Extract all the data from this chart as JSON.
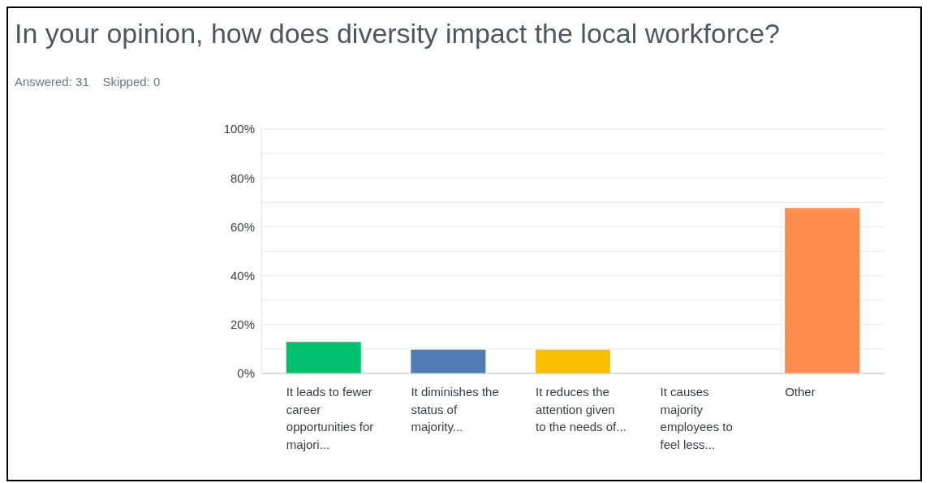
{
  "chart_data": {
    "type": "bar",
    "title": "In your opinion, how does diversity impact the local workforce?",
    "subtitle": "Answered: 31    Skipped: 0",
    "categories": [
      "It leads to fewer career opportunities for majori...",
      "It diminishes the status of majority...",
      "It reduces the attention given to the needs of...",
      "It causes majority employees to feel less...",
      "Other"
    ],
    "values": [
      12.9,
      9.7,
      9.7,
      0,
      67.7
    ],
    "colors": [
      "#00bf6f",
      "#507cb6",
      "#f9be00",
      "#6bc8cd",
      "#ff8b4f"
    ],
    "ylim": [
      0,
      100
    ],
    "yticks": [
      {
        "value": 0,
        "label": "0%"
      },
      {
        "value": 10,
        "label": null
      },
      {
        "value": 20,
        "label": "20%"
      },
      {
        "value": 30,
        "label": null
      },
      {
        "value": 40,
        "label": "40%"
      },
      {
        "value": 50,
        "label": null
      },
      {
        "value": 60,
        "label": "60%"
      },
      {
        "value": 70,
        "label": null
      },
      {
        "value": 80,
        "label": "80%"
      },
      {
        "value": 90,
        "label": null
      },
      {
        "value": 100,
        "label": "100%"
      }
    ],
    "grid": "y"
  }
}
